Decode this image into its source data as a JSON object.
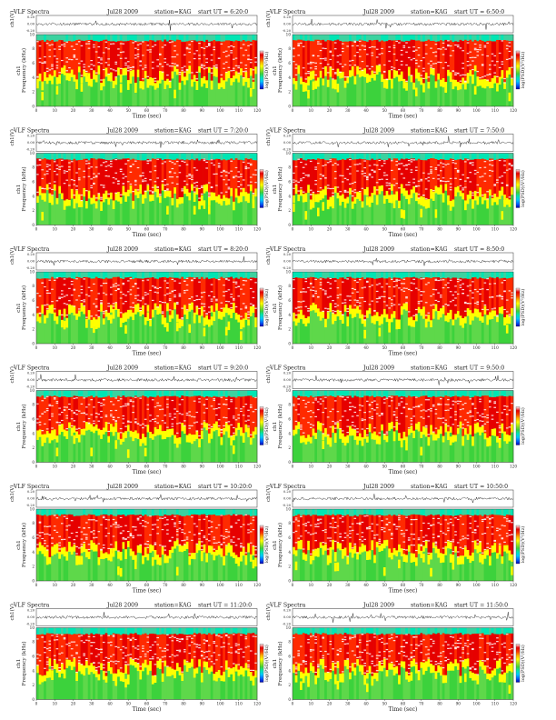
{
  "page": {
    "background": "#ffffff"
  },
  "colorbar": {
    "label": "log(PSD)(V²/Hz)",
    "colors": [
      "#0000b4",
      "#0064ff",
      "#00c8ff",
      "#00e6b4",
      "#3cd23c",
      "#a0e61e",
      "#ffff00",
      "#ffb400",
      "#ff3c00",
      "#e60000",
      "#fff0f0"
    ]
  },
  "common": {
    "title_left": "VLF Spectra",
    "station": "station=KAG",
    "ch_label": "ch1(V)",
    "ch_ticks": [
      "0.20",
      "0.00",
      "-0.20"
    ],
    "spec_ylabel_top": "ch1",
    "spec_ylabel": "Frequency (kHz)",
    "y_ticks": [
      "10",
      "8",
      "6",
      "4",
      "2",
      "0"
    ],
    "x_ticks": [
      "0",
      "10",
      "20",
      "30",
      "40",
      "50",
      "60",
      "70",
      "80",
      "90",
      "100",
      "110",
      "120"
    ],
    "xlabel": "Time (sec)"
  },
  "panels": [
    {
      "date": "Jul28 2009",
      "start": "start UT = 6:20:0"
    },
    {
      "date": "Jul28 2009",
      "start": "start UT = 6:50:0"
    },
    {
      "date": "Jul28 2009",
      "start": "start UT = 7:20:0"
    },
    {
      "date": "Jul28 2009",
      "start": "start UT = 7:50:0"
    },
    {
      "date": "Jul28 2009",
      "start": "start UT = 8:20:0"
    },
    {
      "date": "Jul28 2009",
      "start": "start UT = 8:50:0"
    },
    {
      "date": "Jul28 2009",
      "start": "start UT = 9:20:0"
    },
    {
      "date": "Jul28 2009",
      "start": "start UT = 9:50:0"
    },
    {
      "date": "Jul28 2009",
      "start": "start UT = 10:20:0"
    },
    {
      "date": "Jul28 2009",
      "start": "start UT = 10:50:0"
    },
    {
      "date": "Jul28 2009",
      "start": "start UT = 11:20:0"
    },
    {
      "date": "Jul28 2009",
      "start": "start UT = 11:50:0"
    }
  ],
  "chart_data": {
    "type": "heatmap",
    "series_type": "spectrogram",
    "x_range_sec": [
      0,
      120
    ],
    "y_range_khz": [
      0,
      10
    ],
    "ch1_range_v": [
      -0.2,
      0.2
    ],
    "note_levels": [
      "low (blue/green) below ~5 kHz",
      "high (red) 5–9 kHz",
      "cyan band ~9.5–10 kHz"
    ]
  }
}
